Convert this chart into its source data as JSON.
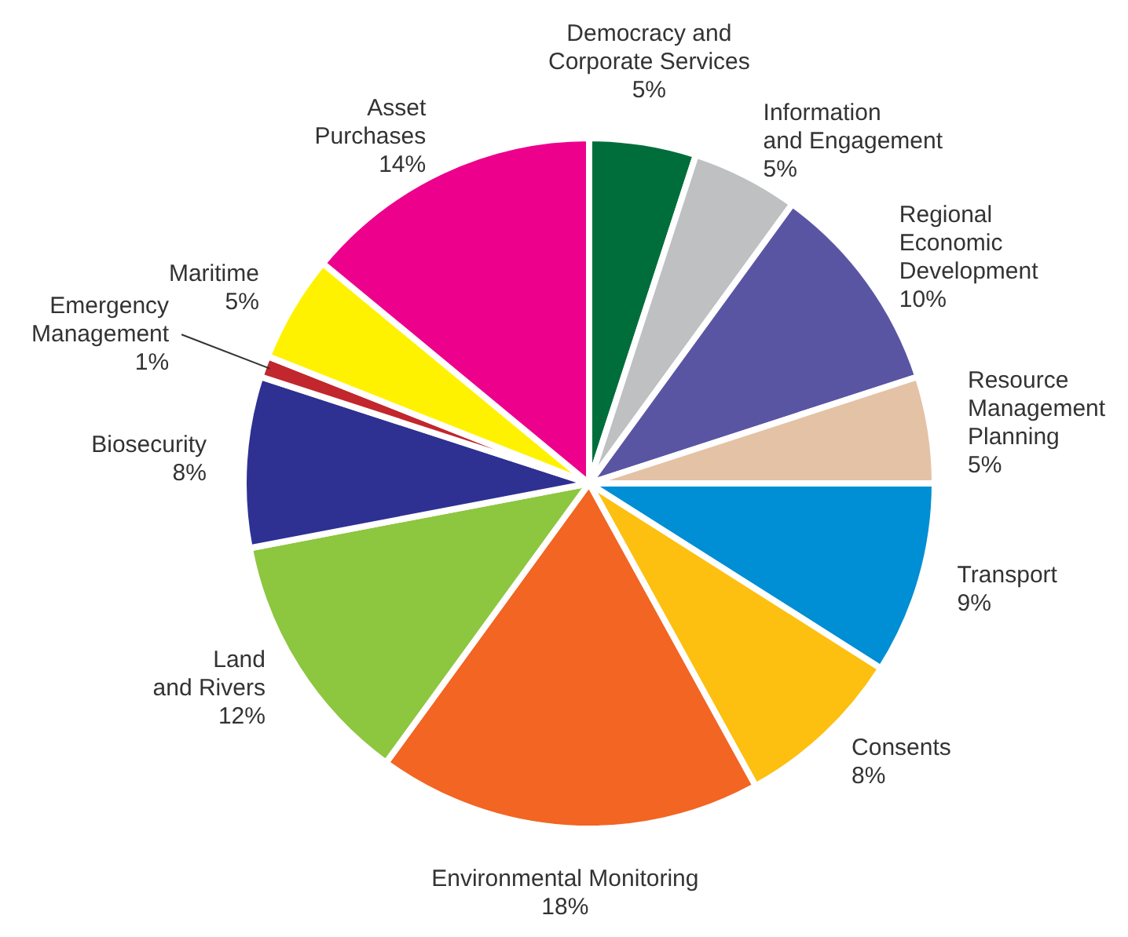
{
  "chart_data": {
    "type": "pie",
    "categories": [
      "Democracy and\nCorporate Services",
      "Information\nand Engagement",
      "Regional\nEconomic\nDevelopment",
      "Resource\nManagement\nPlanning",
      "Transport",
      "Consents",
      "Environmental Monitoring",
      "Land\nand Rivers",
      "Biosecurity",
      "Emergency\nManagement",
      "Maritime",
      "Asset\nPurchases"
    ],
    "values": [
      5,
      5,
      10,
      5,
      9,
      8,
      18,
      12,
      8,
      1,
      5,
      14
    ],
    "colors": [
      "#006e3b",
      "#bfc0c2",
      "#5a55a3",
      "#e4c2a6",
      "#008ed4",
      "#fdc010",
      "#f26522",
      "#8dc63f",
      "#2e3192",
      "#c1272d",
      "#fff200",
      "#ec008c"
    ],
    "value_labels": [
      "5%",
      "5%",
      "10%",
      "5%",
      "9%",
      "8%",
      "18%",
      "12%",
      "8%",
      "1%",
      "5%",
      "14%"
    ],
    "legend": false
  }
}
